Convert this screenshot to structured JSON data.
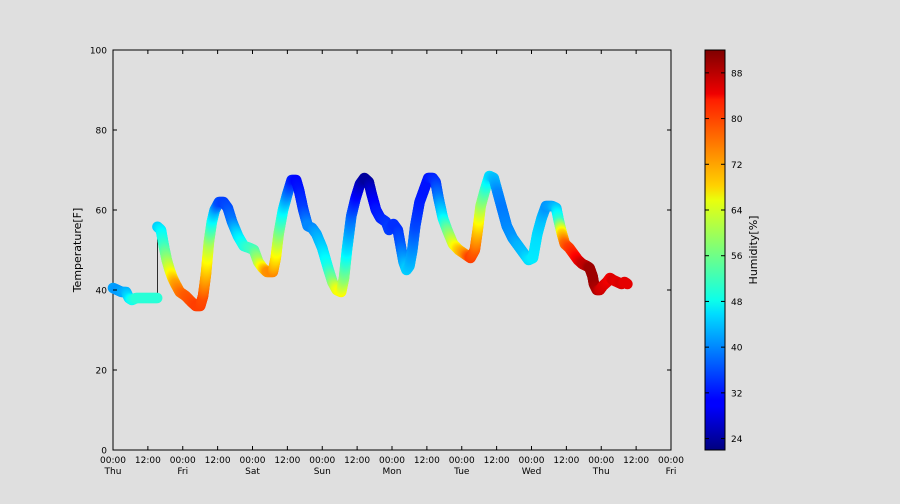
{
  "chart_data": {
    "type": "scatter",
    "ylabel": "Temperature[F]",
    "xlabel": "",
    "ylim": [
      0,
      100
    ],
    "yticks": [
      0,
      20,
      40,
      60,
      80,
      100
    ],
    "x_unit": "hours since first tick",
    "xlim": [
      0,
      192
    ],
    "xticks": [
      {
        "hours": 0,
        "time": "00:00",
        "day": "Thu"
      },
      {
        "hours": 12,
        "time": "12:00",
        "day": ""
      },
      {
        "hours": 24,
        "time": "00:00",
        "day": "Fri"
      },
      {
        "hours": 36,
        "time": "12:00",
        "day": ""
      },
      {
        "hours": 48,
        "time": "00:00",
        "day": "Sat"
      },
      {
        "hours": 60,
        "time": "12:00",
        "day": ""
      },
      {
        "hours": 72,
        "time": "00:00",
        "day": "Sun"
      },
      {
        "hours": 84,
        "time": "12:00",
        "day": ""
      },
      {
        "hours": 96,
        "time": "00:00",
        "day": "Mon"
      },
      {
        "hours": 108,
        "time": "12:00",
        "day": ""
      },
      {
        "hours": 120,
        "time": "00:00",
        "day": "Tue"
      },
      {
        "hours": 132,
        "time": "12:00",
        "day": ""
      },
      {
        "hours": 144,
        "time": "00:00",
        "day": "Wed"
      },
      {
        "hours": 156,
        "time": "12:00",
        "day": ""
      },
      {
        "hours": 168,
        "time": "00:00",
        "day": "Thu"
      },
      {
        "hours": 180,
        "time": "12:00",
        "day": ""
      },
      {
        "hours": 192,
        "time": "00:00",
        "day": "Fri"
      }
    ],
    "colorbar": {
      "label": "Humidity[%]",
      "range": [
        22,
        92
      ],
      "ticks": [
        24,
        32,
        40,
        48,
        56,
        64,
        72,
        80,
        88
      ],
      "colormap": "jet"
    },
    "grid": false,
    "gap": {
      "x": 15.3,
      "y_from": 38,
      "y_to": 55.8
    },
    "series": [
      {
        "points": [
          [
            0,
            40.5,
            42
          ],
          [
            1.5,
            40,
            41
          ],
          [
            3,
            39.5,
            42
          ],
          [
            4.5,
            39.5,
            43
          ],
          [
            5.5,
            38,
            46
          ],
          [
            6.5,
            37.5,
            49
          ],
          [
            8,
            38,
            51
          ],
          [
            10,
            38,
            51
          ],
          [
            12,
            38,
            51
          ],
          [
            14,
            38,
            51
          ],
          [
            15.2,
            38,
            51
          ]
        ]
      },
      {
        "points": [
          [
            15.3,
            55.8,
            45
          ],
          [
            16.5,
            55,
            47
          ],
          [
            17.5,
            51,
            52
          ],
          [
            18.5,
            47.5,
            58
          ],
          [
            19.5,
            45,
            63
          ],
          [
            20.5,
            43,
            68
          ],
          [
            21.5,
            41.5,
            72
          ],
          [
            23,
            39.5,
            75
          ],
          [
            25,
            38.5,
            77
          ],
          [
            27,
            37,
            78
          ],
          [
            28.5,
            36,
            79
          ],
          [
            30,
            36,
            79
          ],
          [
            31,
            38.5,
            78
          ],
          [
            32,
            44,
            71
          ],
          [
            33,
            52,
            60
          ],
          [
            34,
            57,
            50
          ],
          [
            35,
            60,
            43
          ],
          [
            36.5,
            62,
            36
          ],
          [
            38,
            62,
            35
          ],
          [
            39.5,
            60.5,
            36
          ],
          [
            41,
            57,
            39
          ],
          [
            43,
            53.5,
            46
          ],
          [
            45,
            51,
            50
          ],
          [
            47,
            50.5,
            52
          ],
          [
            48.5,
            50,
            53
          ],
          [
            50,
            47,
            60
          ],
          [
            51.5,
            45.5,
            67
          ],
          [
            53,
            44.5,
            73
          ],
          [
            55,
            44.5,
            74
          ],
          [
            56,
            48,
            68
          ],
          [
            57,
            54,
            58
          ],
          [
            58.5,
            60,
            48
          ],
          [
            60,
            64,
            40
          ],
          [
            61.5,
            67.5,
            33
          ],
          [
            63,
            67.5,
            31
          ],
          [
            64,
            65,
            32
          ],
          [
            65.5,
            60,
            35
          ],
          [
            67,
            56,
            40
          ],
          [
            68.5,
            55.5,
            40
          ],
          [
            70,
            54,
            42
          ],
          [
            72,
            50.5,
            45
          ],
          [
            74,
            45.5,
            50
          ],
          [
            75.5,
            42,
            57
          ],
          [
            77,
            40,
            64
          ],
          [
            78.5,
            39.5,
            66
          ],
          [
            79.5,
            43,
            58
          ],
          [
            80.5,
            50,
            47
          ],
          [
            82,
            58.5,
            38
          ],
          [
            83.5,
            63,
            32
          ],
          [
            85,
            66.5,
            27
          ],
          [
            86.5,
            68,
            24
          ],
          [
            88,
            67,
            24
          ],
          [
            89,
            64,
            28
          ],
          [
            90.5,
            60,
            32
          ],
          [
            92,
            58,
            33
          ],
          [
            94,
            57,
            34
          ],
          [
            95,
            55,
            35
          ],
          [
            96.5,
            56.5,
            34
          ],
          [
            98,
            55,
            34
          ],
          [
            99,
            51,
            37
          ],
          [
            100,
            47,
            42
          ],
          [
            101,
            45,
            45
          ],
          [
            102,
            46,
            44
          ],
          [
            103,
            50,
            41
          ],
          [
            104,
            56,
            36
          ],
          [
            105.5,
            62,
            33
          ],
          [
            107,
            65,
            32
          ],
          [
            108.5,
            68,
            32
          ],
          [
            110,
            68,
            33
          ],
          [
            111,
            67,
            34
          ],
          [
            112,
            63,
            39
          ],
          [
            113.5,
            58,
            47
          ],
          [
            115,
            55,
            55
          ],
          [
            117,
            51.5,
            63
          ],
          [
            119,
            50,
            69
          ],
          [
            121,
            49,
            73
          ],
          [
            123,
            48,
            79
          ],
          [
            124.5,
            50,
            77
          ],
          [
            125.5,
            55,
            70
          ],
          [
            126.5,
            61,
            60
          ],
          [
            128,
            65,
            53
          ],
          [
            129.5,
            68.5,
            46
          ],
          [
            131,
            68,
            44
          ],
          [
            132.5,
            64,
            40
          ],
          [
            134,
            60,
            39
          ],
          [
            135.5,
            56,
            40
          ],
          [
            137.5,
            53,
            41
          ],
          [
            139.5,
            51,
            43
          ],
          [
            141.5,
            49,
            44
          ],
          [
            143,
            47.5,
            46
          ],
          [
            144.5,
            48,
            47
          ],
          [
            146,
            54,
            46
          ],
          [
            147.5,
            58,
            44
          ],
          [
            149,
            61,
            41
          ],
          [
            151,
            61,
            42
          ],
          [
            152.5,
            60.5,
            44
          ],
          [
            153.5,
            57,
            52
          ],
          [
            154.5,
            54,
            68
          ],
          [
            155.5,
            51.5,
            76
          ],
          [
            157,
            50.5,
            79
          ],
          [
            158.5,
            49,
            81
          ],
          [
            160,
            47.5,
            84
          ],
          [
            161.5,
            46.5,
            87
          ],
          [
            163,
            46,
            88
          ],
          [
            164,
            45.5,
            90
          ],
          [
            165,
            43.5,
            90
          ],
          [
            165.5,
            41.5,
            90
          ],
          [
            166.5,
            40,
            89
          ],
          [
            167.5,
            40,
            87
          ],
          [
            168.5,
            41,
            86
          ],
          [
            170,
            42,
            85
          ],
          [
            171,
            43,
            84
          ],
          [
            172,
            42.5,
            86
          ],
          [
            173.5,
            42,
            85
          ],
          [
            175,
            41.5,
            86
          ],
          [
            176,
            42,
            85
          ],
          [
            177,
            41.5,
            85
          ]
        ]
      }
    ]
  }
}
